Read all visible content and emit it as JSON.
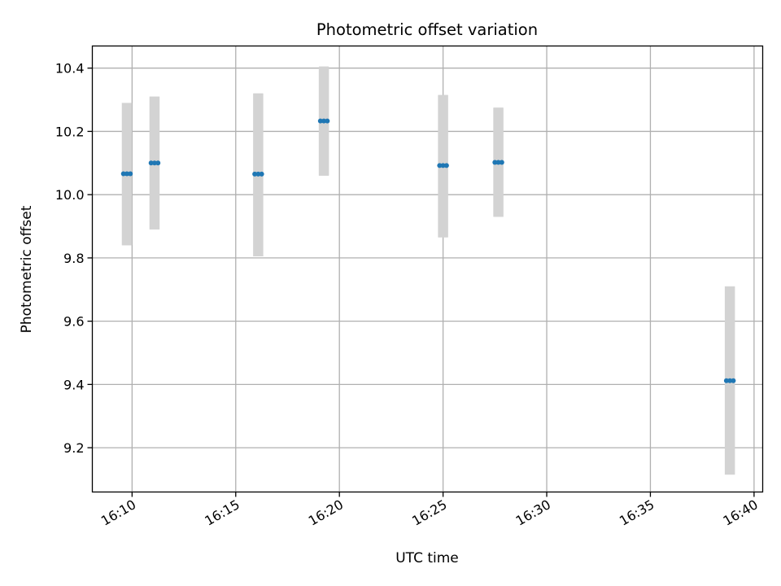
{
  "chart_data": {
    "type": "scatter",
    "title": "Photometric offset variation",
    "xlabel": "UTC time",
    "ylabel": "Photometric offset",
    "x_unit": "UTC time HH:MM",
    "xlim": [
      "16:08:05",
      "16:40:25"
    ],
    "ylim": [
      9.06,
      10.47
    ],
    "grid": true,
    "x_ticks": [
      "16:10",
      "16:15",
      "16:20",
      "16:25",
      "16:30",
      "16:35",
      "16:40"
    ],
    "y_ticks": [
      "9.2",
      "9.4",
      "9.6",
      "9.8",
      "10.0",
      "10.2",
      "10.4"
    ],
    "errorbar_color": "#d3d3d3",
    "point_color": "#1f77b4",
    "groups": [
      {
        "x_start": "16:09:35",
        "x_end": "16:09:55",
        "y": 10.066,
        "ylow": 9.84,
        "yhigh": 10.29
      },
      {
        "x_start": "16:10:55",
        "x_end": "16:11:15",
        "y": 10.1,
        "ylow": 9.89,
        "yhigh": 10.31
      },
      {
        "x_start": "16:15:55",
        "x_end": "16:16:15",
        "y": 10.065,
        "ylow": 9.805,
        "yhigh": 10.32
      },
      {
        "x_start": "16:19:05",
        "x_end": "16:19:25",
        "y": 10.233,
        "ylow": 10.06,
        "yhigh": 10.405
      },
      {
        "x_start": "16:24:50",
        "x_end": "16:25:10",
        "y": 10.092,
        "ylow": 9.865,
        "yhigh": 10.315
      },
      {
        "x_start": "16:27:30",
        "x_end": "16:27:50",
        "y": 10.102,
        "ylow": 9.93,
        "yhigh": 10.275
      },
      {
        "x_start": "16:38:40",
        "x_end": "16:39:00",
        "y": 9.412,
        "ylow": 9.115,
        "yhigh": 9.71
      }
    ]
  }
}
